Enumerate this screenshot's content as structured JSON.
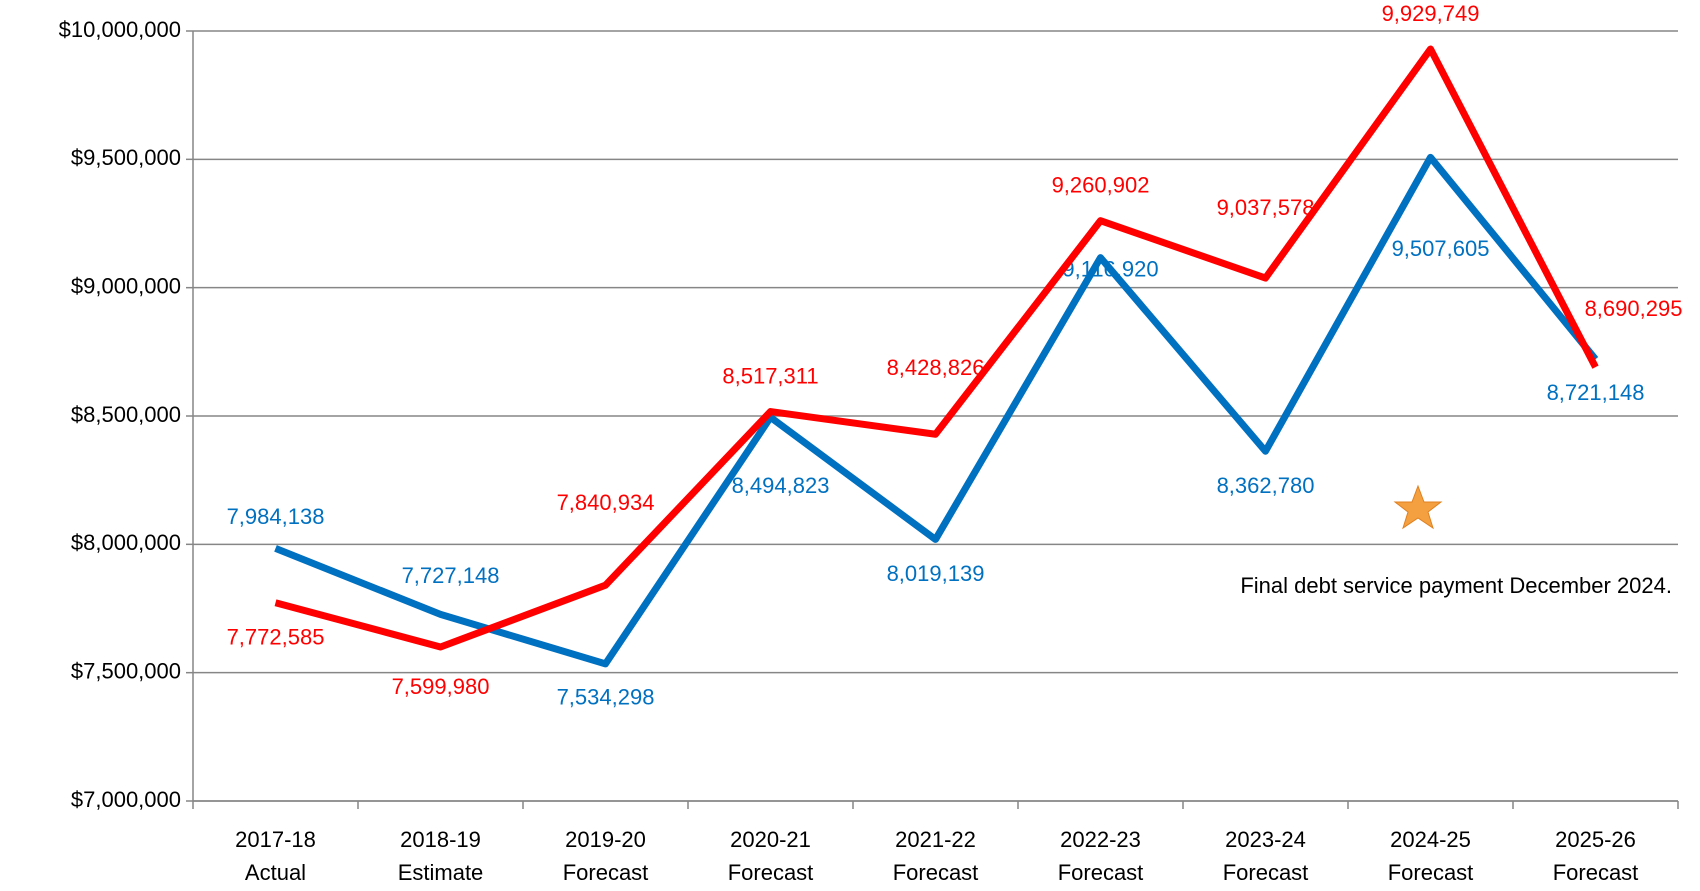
{
  "chart_data": {
    "type": "line",
    "categories": [
      "2017-18 Actual",
      "2018-19 Estimate",
      "2019-20 Forecast",
      "2020-21 Forecast",
      "2021-22 Forecast",
      "2022-23 Forecast",
      "2023-24 Forecast",
      "2024-25 Forecast",
      "2025-26 Forecast"
    ],
    "series": [
      {
        "color": "#0070c0",
        "values": [
          7984138,
          7727148,
          7534298,
          8494823,
          8019139,
          9116920,
          8362780,
          9507605,
          8721148
        ],
        "value_labels": [
          "7,984,138",
          "7,727,148",
          "7,534,298",
          "8,494,823",
          "8,019,139",
          "9,116,920",
          "8,362,780",
          "9,507,605",
          "8,721,148"
        ]
      },
      {
        "color": "#ff0000",
        "values": [
          7772585,
          7599980,
          7840934,
          8517311,
          8428826,
          9260902,
          9037578,
          9929749,
          8690295
        ],
        "value_labels": [
          "7,772,585",
          "7,599,980",
          "7,840,934",
          "8,517,311",
          "8,428,826",
          "9,260,902",
          "9,037,578",
          "9,929,749",
          "8,690,295"
        ]
      }
    ],
    "ylim": [
      7000000,
      10000000
    ],
    "yticks": [
      {
        "value": 7000000,
        "label": "$7,000,000"
      },
      {
        "value": 7500000,
        "label": "$7,500,000"
      },
      {
        "value": 8000000,
        "label": "$8,000,000"
      },
      {
        "value": 8500000,
        "label": "$8,500,000"
      },
      {
        "value": 9000000,
        "label": "$9,000,000"
      },
      {
        "value": 9500000,
        "label": "$9,500,000"
      },
      {
        "value": 10000000,
        "label": "$10,000,000"
      }
    ],
    "grid": true,
    "annotation": "Final debt service payment December 2024."
  }
}
